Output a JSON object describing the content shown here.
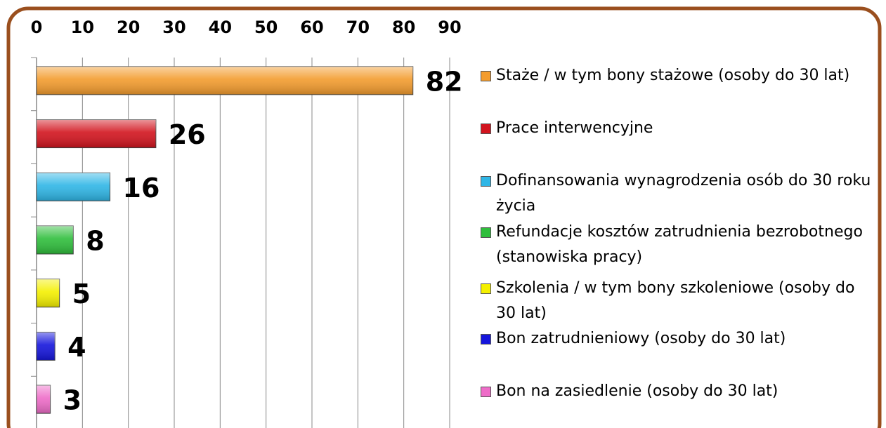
{
  "chart_data": {
    "type": "bar",
    "orientation": "horizontal",
    "xlim": [
      0,
      90
    ],
    "xticks": [
      0,
      10,
      20,
      30,
      40,
      50,
      60,
      70,
      80,
      90
    ],
    "grid": true,
    "legend": "right",
    "series": [
      {
        "name": "Staże / w tym bony stażowe (osoby do 30 lat)",
        "color": "#f39c2e",
        "values": [
          82
        ]
      },
      {
        "name": "Prace interwencyjne",
        "color": "#d2141e",
        "values": [
          26
        ]
      },
      {
        "name": "Dofinansowania wynagrodzenia osób do 30 roku życia",
        "color": "#2fb6e6",
        "values": [
          16
        ]
      },
      {
        "name": "Refundacje kosztów zatrudnienia bezrobotnego (stanowiska pracy)",
        "color": "#2fbe3c",
        "values": [
          8
        ]
      },
      {
        "name": "Szkolenia / w tym bony szkoleniowe (osoby do 30 lat)",
        "color": "#f4f000",
        "values": [
          5
        ]
      },
      {
        "name": "Bon zatrudnieniowy (osoby do 30 lat)",
        "color": "#1515dc",
        "values": [
          4
        ]
      },
      {
        "name": "Bon na zasiedlenie (osoby do 30 lat)",
        "color": "#ee6cc8",
        "values": [
          3
        ]
      }
    ]
  }
}
